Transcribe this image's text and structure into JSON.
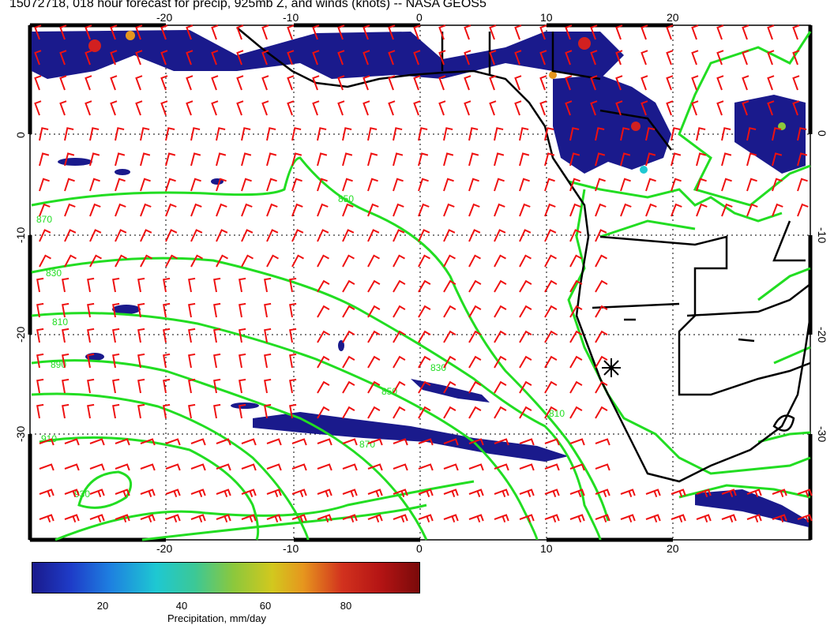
{
  "title": "15072718, 018 hour forecast for precip, 925mb Z, and winds (knots) -- NASA GEOS5",
  "map": {
    "lon_ticks": [
      "-20",
      "-10",
      "0",
      "10",
      "20"
    ],
    "lat_ticks": [
      "0",
      "-10",
      "-20",
      "-30"
    ],
    "contour_labels": [
      "850",
      "870",
      "830",
      "810",
      "890",
      "910",
      "930",
      "830",
      "850",
      "870",
      "810"
    ],
    "colors": {
      "contour": "#22dd22",
      "barb": "#ee1111",
      "coast": "#000000",
      "precip_low": "#1a1a8c"
    }
  },
  "colorbar": {
    "ticks": [
      "20",
      "40",
      "60",
      "80"
    ],
    "label": "Precipitation, mm/day"
  }
}
